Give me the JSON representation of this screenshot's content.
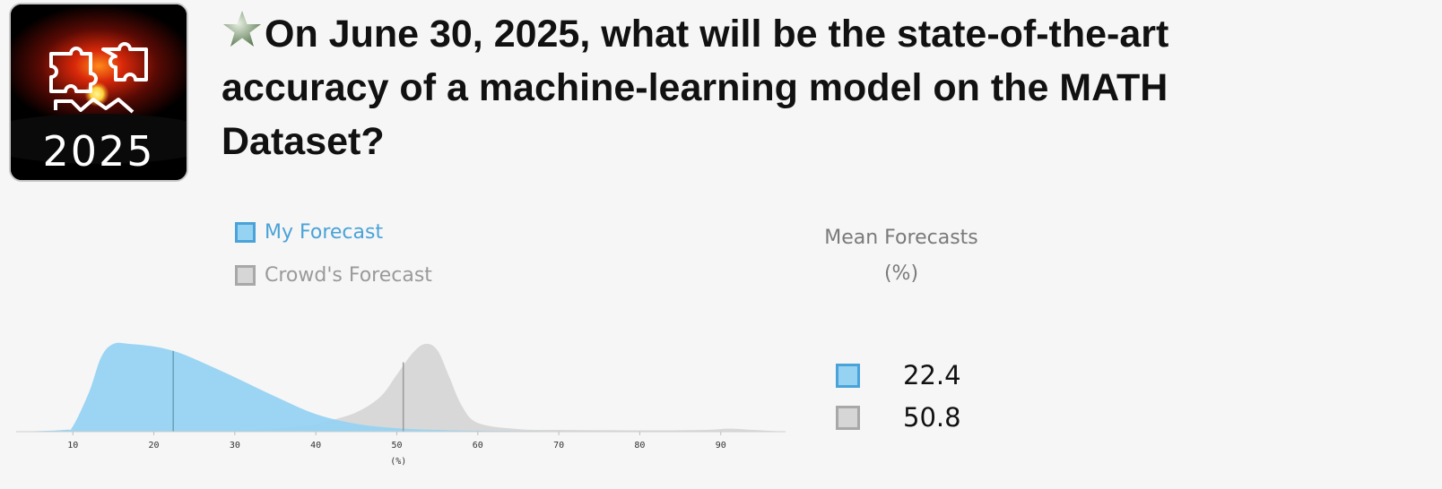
{
  "header": {
    "logo_text": "2025",
    "title": "On June 30, 2025, what will be the state-of-the-art accuracy of a machine-learning model on the MATH Dataset?",
    "star_icon": "star-icon"
  },
  "legend": {
    "my_forecast": "My Forecast",
    "crowd_forecast": "Crowd's Forecast"
  },
  "means": {
    "title": "Mean Forecasts",
    "unit": "(%)",
    "my_value": "22.4",
    "crowd_value": "50.8"
  },
  "colors": {
    "my_fill": "#96d3f2",
    "my_border": "#4aa3d8",
    "crowd_fill": "#d2d2d2",
    "crowd_border": "#a8a8a8"
  },
  "chart_data": {
    "type": "area",
    "xlabel": "(%)",
    "xlim": [
      3,
      98
    ],
    "ticks": [
      10,
      20,
      30,
      40,
      50,
      60,
      70,
      80,
      90
    ],
    "tick_labels": [
      "10",
      "20",
      "30",
      "40",
      "50",
      "60",
      "70",
      "80",
      "90"
    ],
    "series": [
      {
        "name": "My Forecast",
        "mean": 22.4,
        "x": [
          3,
          9,
          10,
          12,
          13.5,
          15,
          17,
          20,
          22.4,
          25,
          30,
          35,
          40,
          45,
          50,
          55,
          60,
          70,
          80,
          90,
          98
        ],
        "y": [
          0,
          0.02,
          0.06,
          0.45,
          0.85,
          1.0,
          1.0,
          0.97,
          0.92,
          0.83,
          0.62,
          0.4,
          0.2,
          0.09,
          0.04,
          0.02,
          0.01,
          0.005,
          0.003,
          0.002,
          0
        ]
      },
      {
        "name": "Crowd's Forecast",
        "mean": 50.8,
        "x": [
          3,
          10,
          20,
          30,
          38,
          41,
          45,
          48,
          50,
          52,
          53.5,
          55,
          56.5,
          58,
          60,
          65,
          70,
          80,
          88,
          91,
          94,
          98
        ],
        "y": [
          0,
          0.003,
          0.005,
          0.01,
          0.06,
          0.11,
          0.22,
          0.4,
          0.65,
          0.9,
          1.0,
          0.93,
          0.62,
          0.3,
          0.1,
          0.03,
          0.02,
          0.015,
          0.02,
          0.035,
          0.02,
          0
        ]
      }
    ]
  }
}
